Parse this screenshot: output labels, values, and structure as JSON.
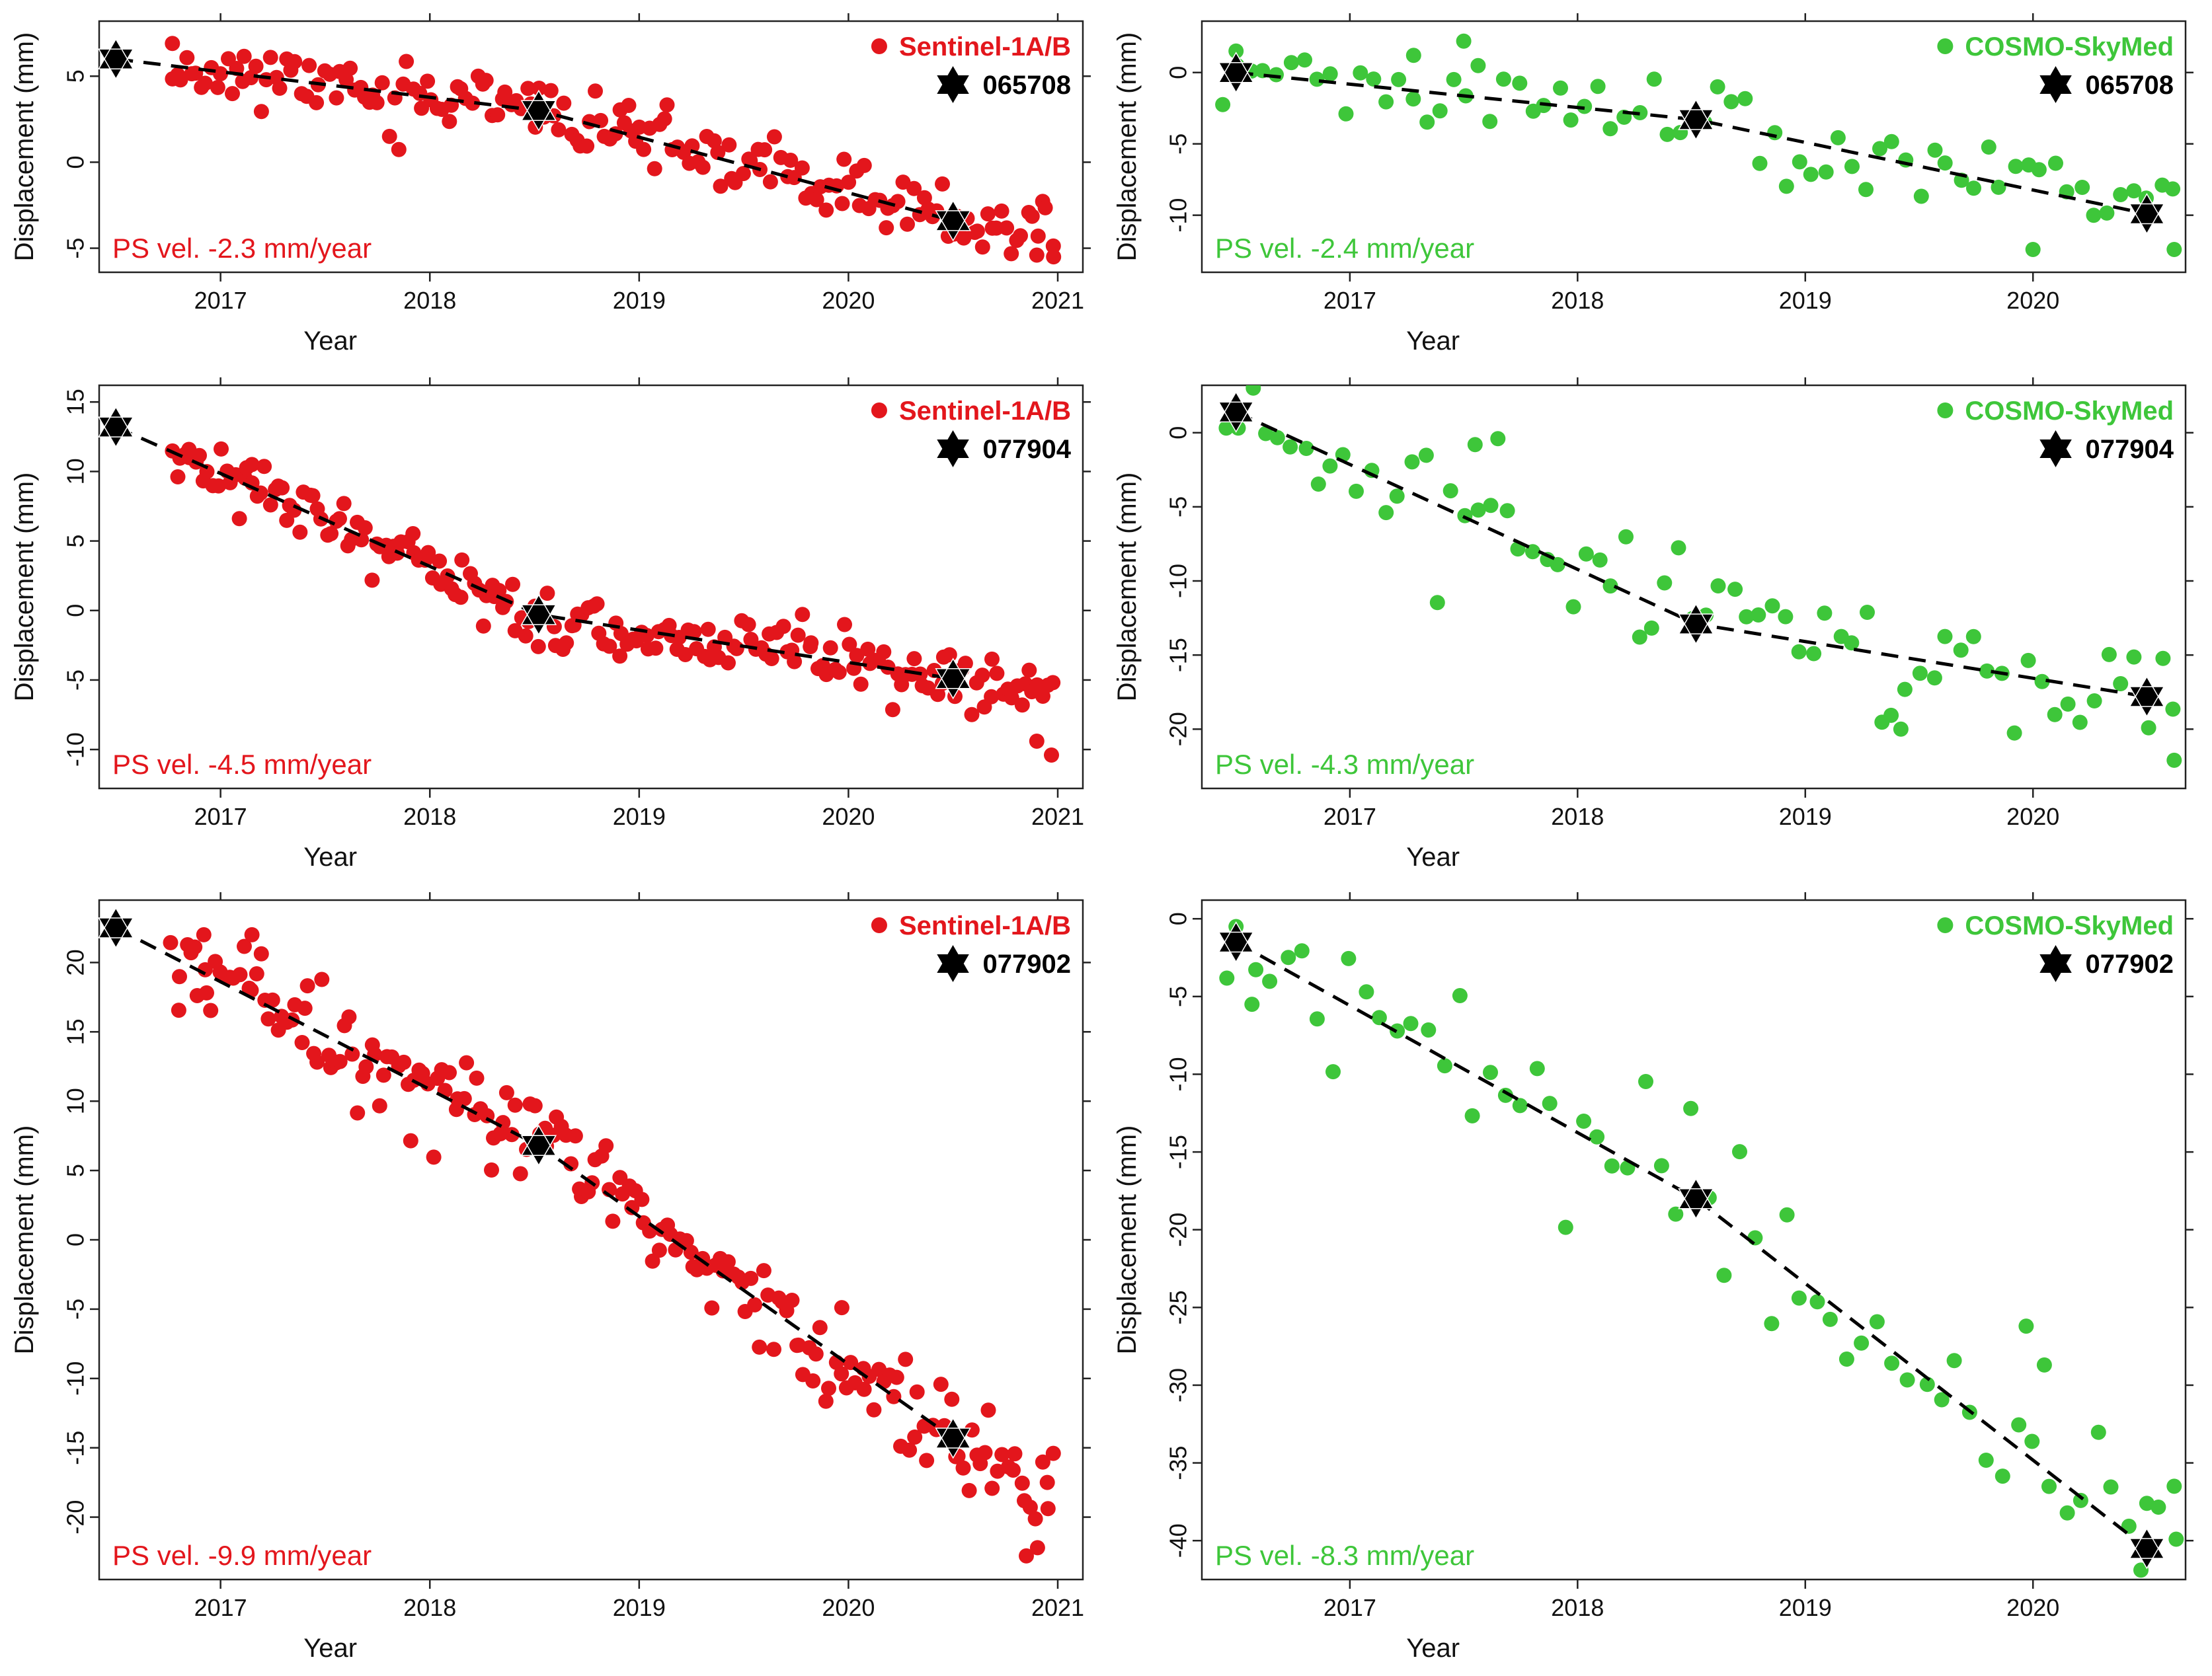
{
  "figure": {
    "colors": {
      "sentinel": "#e3161c",
      "cosmo": "#3ec63a",
      "line": "#000000",
      "star": "#000000"
    }
  },
  "chart_data": [
    {
      "type": "scatter",
      "panel": "top-left",
      "xlabel": "Year",
      "ylabel": "Displacement (mm)",
      "xlim": [
        2016.42,
        2021.12
      ],
      "ylim": [
        -6.4,
        8.2
      ],
      "xticks": [
        2017,
        2018,
        2019,
        2020,
        2021
      ],
      "yticks": [
        -5,
        0,
        5
      ],
      "legend": {
        "series_label": "Sentinel-1A/B",
        "target_label": "065708",
        "placement": "top-right"
      },
      "velocity_label": "PS vel. -2.3 mm/year",
      "velocity_placement": "bottom-left",
      "seed": 11,
      "points": {
        "count": 180,
        "start": 2016.77,
        "end": 2020.97,
        "noise": 1.15
      },
      "color_key": "sentinel",
      "trend": [
        [
          2016.5,
          6.0
        ],
        [
          2018.52,
          3.0
        ],
        [
          2020.5,
          -3.4
        ]
      ],
      "stars": [
        [
          2016.5,
          6.0
        ],
        [
          2018.52,
          3.0
        ],
        [
          2020.5,
          -3.4
        ]
      ],
      "extra_points": [
        [
          2016.77,
          6.9
        ],
        [
          2017.6,
          4.8
        ],
        [
          2018.95,
          3.3
        ],
        [
          2020.9,
          -5.4
        ],
        [
          2020.98,
          -5.5
        ]
      ]
    },
    {
      "type": "scatter",
      "panel": "top-right",
      "xlabel": "Year",
      "ylabel": "Displacement (mm)",
      "xlim": [
        2016.35,
        2020.67
      ],
      "ylim": [
        -14.0,
        3.6
      ],
      "xticks": [
        2017,
        2018,
        2019,
        2020
      ],
      "yticks": [
        -10,
        -5,
        0
      ],
      "legend": {
        "series_label": "COSMO-SkyMed",
        "target_label": "065708",
        "placement": "top-right"
      },
      "velocity_label": "PS vel. -2.4 mm/year",
      "velocity_placement": "bottom-left",
      "seed": 23,
      "points": {
        "count": 72,
        "start": 2016.45,
        "end": 2020.62,
        "noise": 2.0
      },
      "color_key": "cosmo",
      "trend": [
        [
          2016.5,
          0.0
        ],
        [
          2018.52,
          -3.3
        ],
        [
          2020.5,
          -9.9
        ]
      ],
      "stars": [
        [
          2016.5,
          0.0
        ],
        [
          2018.52,
          -3.3
        ],
        [
          2020.5,
          -9.9
        ]
      ],
      "extra_points": [
        [
          2017.5,
          2.2
        ],
        [
          2017.28,
          1.2
        ],
        [
          2016.5,
          1.5
        ],
        [
          2020.0,
          -12.4
        ],
        [
          2020.62,
          -12.4
        ]
      ]
    },
    {
      "type": "scatter",
      "panel": "middle-left",
      "xlabel": "Year",
      "ylabel": "Displacement (mm)",
      "xlim": [
        2016.42,
        2021.12
      ],
      "ylim": [
        -12.8,
        16.2
      ],
      "xticks": [
        2017,
        2018,
        2019,
        2020,
        2021
      ],
      "yticks": [
        -10,
        -5,
        0,
        5,
        10,
        15
      ],
      "legend": {
        "series_label": "Sentinel-1A/B",
        "target_label": "077904",
        "placement": "top-right"
      },
      "velocity_label": "PS vel. -4.5 mm/year",
      "velocity_placement": "bottom-left",
      "seed": 37,
      "points": {
        "count": 200,
        "start": 2016.77,
        "end": 2020.97,
        "noise": 1.4
      },
      "color_key": "sentinel",
      "trend": [
        [
          2016.5,
          13.2
        ],
        [
          2018.52,
          -0.3
        ],
        [
          2020.5,
          -4.9
        ]
      ],
      "stars": [
        [
          2016.5,
          13.2
        ],
        [
          2018.52,
          -0.3
        ],
        [
          2020.5,
          -4.9
        ]
      ],
      "extra_points": [
        [
          2016.85,
          11.0
        ],
        [
          2017.15,
          10.5
        ],
        [
          2020.97,
          -10.4
        ],
        [
          2020.9,
          -9.4
        ]
      ]
    },
    {
      "type": "scatter",
      "panel": "middle-right",
      "xlabel": "Year",
      "ylabel": "Displacement (mm)",
      "xlim": [
        2016.35,
        2020.67
      ],
      "ylim": [
        -24.0,
        3.2
      ],
      "xticks": [
        2017,
        2018,
        2019,
        2020
      ],
      "yticks": [
        -20,
        -15,
        -10,
        -5,
        0
      ],
      "legend": {
        "series_label": "COSMO-SkyMed",
        "target_label": "077904",
        "placement": "top-right"
      },
      "velocity_label": "PS vel. -4.3 mm/year",
      "velocity_placement": "bottom-left",
      "seed": 41,
      "points": {
        "count": 72,
        "start": 2016.45,
        "end": 2020.62,
        "noise": 2.4
      },
      "color_key": "cosmo",
      "trend": [
        [
          2016.5,
          1.4
        ],
        [
          2018.52,
          -12.9
        ],
        [
          2020.5,
          -17.8
        ]
      ],
      "stars": [
        [
          2016.5,
          1.4
        ],
        [
          2018.52,
          -12.9
        ],
        [
          2020.5,
          -17.8
        ]
      ],
      "extra_points": [
        [
          2017.65,
          -0.4
        ],
        [
          2017.55,
          -0.8
        ],
        [
          2020.62,
          -22.1
        ],
        [
          2019.42,
          -20.0
        ]
      ]
    },
    {
      "type": "scatter",
      "panel": "bottom-left",
      "xlabel": "Year",
      "ylabel": "Displacement (mm)",
      "xlim": [
        2016.42,
        2021.12
      ],
      "ylim": [
        -24.5,
        24.5
      ],
      "xticks": [
        2017,
        2018,
        2019,
        2020,
        2021
      ],
      "yticks": [
        -20,
        -15,
        -10,
        -5,
        0,
        5,
        10,
        15,
        20
      ],
      "legend": {
        "series_label": "Sentinel-1A/B",
        "target_label": "077902",
        "placement": "top-right"
      },
      "velocity_label": "PS vel. -9.9 mm/year",
      "velocity_placement": "bottom-left",
      "seed": 53,
      "points": {
        "count": 200,
        "start": 2016.77,
        "end": 2020.97,
        "noise": 2.2
      },
      "color_key": "sentinel",
      "trend": [
        [
          2016.5,
          22.5
        ],
        [
          2018.52,
          6.8
        ],
        [
          2020.5,
          -14.3
        ]
      ],
      "stars": [
        [
          2016.5,
          22.5
        ],
        [
          2018.52,
          6.8
        ],
        [
          2020.5,
          -14.3
        ]
      ],
      "extra_points": [
        [
          2017.15,
          22.0
        ],
        [
          2016.92,
          22.0
        ],
        [
          2020.85,
          -22.8
        ],
        [
          2020.95,
          -17.5
        ]
      ]
    },
    {
      "type": "scatter",
      "panel": "bottom-right",
      "xlabel": "Year",
      "ylabel": "Displacement (mm)",
      "xlim": [
        2016.35,
        2020.67
      ],
      "ylim": [
        -42.5,
        1.2
      ],
      "xticks": [
        2017,
        2018,
        2019,
        2020
      ],
      "yticks": [
        -40,
        -35,
        -30,
        -25,
        -20,
        -15,
        -10,
        -5,
        0
      ],
      "legend": {
        "series_label": "COSMO-SkyMed",
        "target_label": "077902",
        "placement": "top-right"
      },
      "velocity_label": "PS vel. -8.3 mm/year",
      "velocity_placement": "bottom-left",
      "seed": 67,
      "points": {
        "count": 62,
        "start": 2016.45,
        "end": 2020.62,
        "noise": 3.0
      },
      "color_key": "cosmo",
      "trend": [
        [
          2016.5,
          -1.5
        ],
        [
          2018.52,
          -18.0
        ],
        [
          2020.5,
          -40.5
        ]
      ],
      "stars": [
        [
          2016.5,
          -1.5
        ],
        [
          2018.52,
          -18.0
        ],
        [
          2020.5,
          -40.5
        ]
      ],
      "extra_points": [
        [
          2016.5,
          -0.5
        ],
        [
          2016.57,
          -5.5
        ],
        [
          2020.62,
          -36.5
        ],
        [
          2020.5,
          -37.6
        ],
        [
          2019.97,
          -26.2
        ],
        [
          2020.05,
          -28.7
        ]
      ]
    }
  ]
}
